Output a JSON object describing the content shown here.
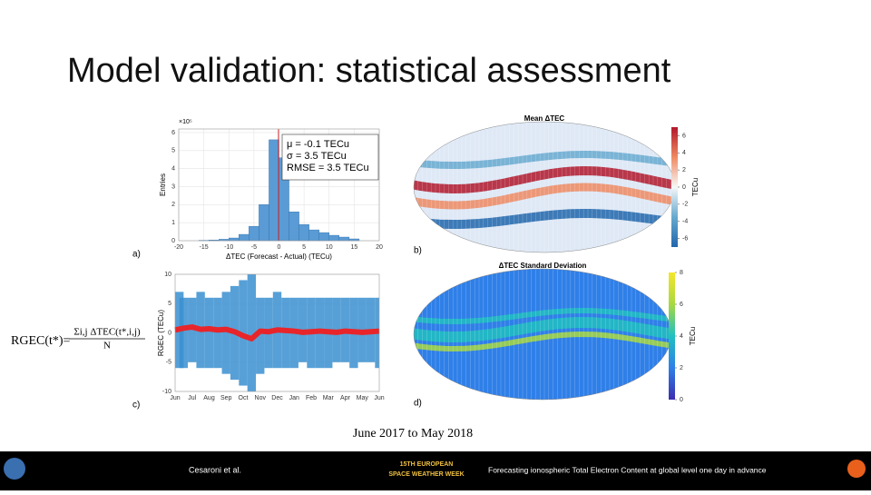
{
  "title": "Model validation: statistical assessment",
  "chart_data": [
    {
      "type": "histogram",
      "panel": "a)",
      "ylabel": "Entries",
      "yexp": "×10⁵",
      "xlabel": "ΔTEC (Forecast - Actual) (TECu)",
      "bins": [
        -16,
        -14,
        -12,
        -10,
        -8,
        -6,
        -4,
        -2,
        0,
        2,
        4,
        6,
        8,
        10,
        12,
        14,
        16
      ],
      "values": [
        0.02,
        0.04,
        0.08,
        0.15,
        0.35,
        0.8,
        2.0,
        5.6,
        4.6,
        1.6,
        0.9,
        0.6,
        0.45,
        0.3,
        0.2,
        0.1
      ],
      "color": "#5b9bd5",
      "xlim": [
        -20,
        20
      ],
      "xticks": [
        -20,
        -15,
        -10,
        -5,
        0,
        5,
        10,
        15,
        20
      ],
      "ylim": [
        0,
        6.2
      ],
      "yticks": [
        0,
        1,
        2,
        3,
        4,
        5,
        6
      ],
      "grid": true,
      "vline": {
        "value": -0.1,
        "color": "#d62728"
      },
      "annotations": [
        "μ = -0.1 TECu",
        "σ = 3.5 TECu",
        "RMSE = 3.5 TECu"
      ]
    },
    {
      "type": "line",
      "panel": "c)",
      "ylabel": "RGEC (TECu)",
      "categories": [
        "Jun",
        null,
        "Jul",
        null,
        "Aug",
        null,
        "Sep",
        null,
        "Oct",
        null,
        "Nov",
        null,
        "Dec",
        null,
        "Jan",
        null,
        "Feb",
        null,
        "Mar",
        null,
        "Apr",
        null,
        "May",
        null,
        "Jun"
      ],
      "series": [
        {
          "color": "#3a8fd0",
          "values": [
            7,
            6,
            6,
            7,
            6,
            6,
            7,
            8,
            9,
            10,
            6,
            6,
            7,
            6,
            6,
            6,
            6,
            6,
            6,
            6,
            6,
            6,
            6,
            6,
            6
          ]
        },
        {
          "color": "#3a8fd0",
          "values": [
            -6,
            -6,
            -5,
            -6,
            -6,
            -6,
            -7,
            -8,
            -9,
            -10,
            -7,
            -6,
            -6,
            -6,
            -6,
            -5,
            -6,
            -6,
            -6,
            -5,
            -5,
            -6,
            -5,
            -5,
            -6
          ]
        },
        {
          "color": "#e8252a",
          "values": [
            0.5,
            0.8,
            1,
            0.6,
            0.7,
            0.5,
            0.6,
            0.2,
            -0.5,
            -1,
            0.3,
            0.2,
            0.5,
            0.4,
            0.3,
            0.1,
            0.2,
            0.3,
            0.2,
            0.1,
            0.3,
            0.2,
            0.1,
            0.2,
            0.3
          ]
        }
      ],
      "ylim": [
        -10,
        10
      ],
      "yticks": [
        -10,
        -5,
        0,
        5,
        10
      ],
      "grid": true
    },
    {
      "type": "map",
      "panel": "b)",
      "title": "Mean ΔTEC",
      "colorbar_label": "TECu",
      "colormap": [
        "#2166ac",
        "#67a9cf",
        "#f7f7f7",
        "#ef8a62",
        "#b2182b"
      ],
      "ylim": [
        -7,
        7
      ],
      "yticks": [
        -6,
        -4,
        -2,
        0,
        2,
        4,
        6
      ]
    },
    {
      "type": "map",
      "panel": "d)",
      "title": "ΔTEC Standard Deviation",
      "colorbar_label": "TECu",
      "colormap": [
        "#3b2db0",
        "#2f7fe8",
        "#20c0c0",
        "#a8d840",
        "#f5e62a"
      ],
      "ylim": [
        0,
        8
      ],
      "yticks": [
        0,
        2,
        4,
        6,
        8
      ]
    }
  ],
  "formula": {
    "lhs": "RGEC(t*)=",
    "numerator": "Σi,j ΔTEC(t*,i,j)",
    "denominator": "N"
  },
  "caption": "June 2017 to May 2018",
  "footer": {
    "authors": "Cesaroni et al.",
    "logo_line1": "15TH EUROPEAN",
    "logo_line2": "SPACE WEATHER WEEK",
    "talk": "Forecasting ionospheric Total Electron Content at global level one day in advance"
  }
}
